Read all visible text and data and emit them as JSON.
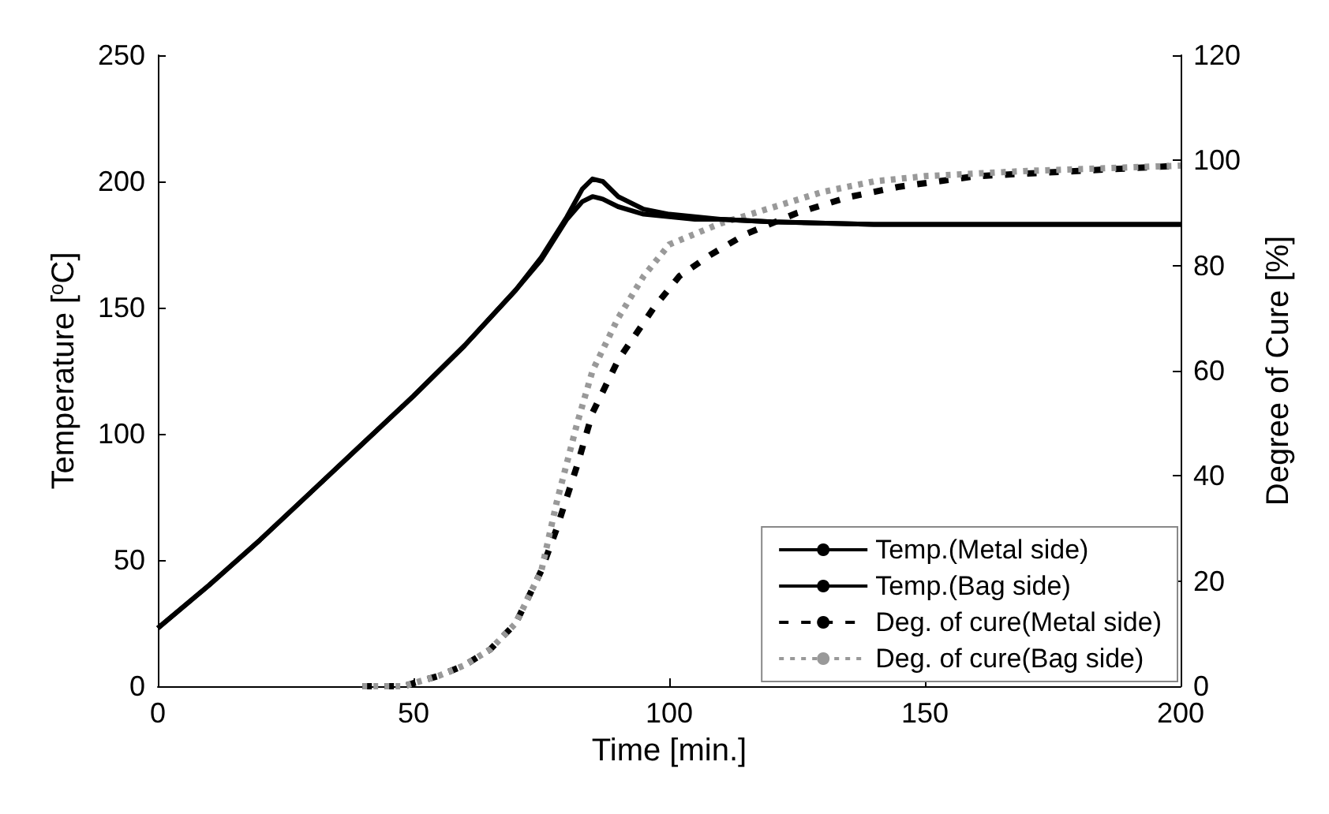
{
  "chart_data": {
    "type": "line",
    "xlabel": "Time [min.]",
    "ylabel": "Temperature [$^{o}$C]",
    "y2label": "Degree of Cure [%]",
    "xlim": [
      0,
      200
    ],
    "xticks": [
      0,
      50,
      100,
      150,
      200
    ],
    "ylim": [
      0,
      250
    ],
    "yticks": [
      0,
      50,
      100,
      150,
      200,
      250
    ],
    "y2lim": [
      0,
      120
    ],
    "y2ticks": [
      0,
      20,
      40,
      60,
      80,
      100,
      120
    ],
    "grid": false,
    "legend": "bottom right",
    "marker": "none",
    "series": [
      {
        "name": "Temp.(Metal side)",
        "color": "#000000",
        "line_style": "solid",
        "x": [
          0,
          10,
          20,
          30,
          40,
          50,
          60,
          70,
          75,
          80,
          83,
          85,
          87,
          90,
          95,
          100,
          105,
          110,
          120,
          140,
          160,
          180,
          200
        ],
        "values": [
          23,
          40,
          58,
          77,
          96,
          115,
          135,
          157,
          170,
          186,
          197,
          201,
          200,
          194,
          189,
          187,
          186,
          185,
          184,
          183,
          183,
          183,
          183
        ]
      },
      {
        "name": "Temp.(Bag side)",
        "color": "#000000",
        "line_style": "solid",
        "x": [
          0,
          10,
          20,
          30,
          40,
          50,
          60,
          70,
          75,
          80,
          83,
          85,
          87,
          90,
          95,
          100,
          105,
          110,
          120,
          140,
          160,
          180,
          200
        ],
        "values": [
          23,
          40,
          58,
          77,
          96,
          115,
          135,
          157,
          169,
          185,
          192,
          194,
          193,
          190,
          187,
          186,
          185,
          185,
          184,
          183,
          183,
          183,
          183
        ]
      },
      {
        "name": "Deg. of cure(Metal side)",
        "color": "#000000",
        "line_style": "dashed",
        "axis": "y2",
        "x": [
          40,
          48,
          55,
          60,
          65,
          70,
          75,
          78,
          82,
          85,
          90,
          97,
          102,
          108,
          115,
          125,
          135,
          145,
          160,
          180,
          200
        ],
        "values": [
          0,
          0,
          2,
          4,
          7,
          12,
          22,
          30,
          42,
          52,
          62,
          72,
          78,
          82,
          86,
          90,
          93,
          95,
          97,
          98,
          99
        ]
      },
      {
        "name": "Deg. of cure(Bag side)",
        "color": "#999999",
        "line_style": "dotted",
        "axis": "y2",
        "x": [
          40,
          48,
          55,
          60,
          65,
          70,
          75,
          78,
          82,
          85,
          90,
          95,
          100,
          110,
          120,
          130,
          140,
          150,
          170,
          200
        ],
        "values": [
          0,
          0,
          2,
          4,
          7,
          12,
          22,
          35,
          50,
          60,
          70,
          78,
          84,
          88,
          91,
          94,
          96,
          97,
          98,
          99
        ]
      }
    ]
  }
}
